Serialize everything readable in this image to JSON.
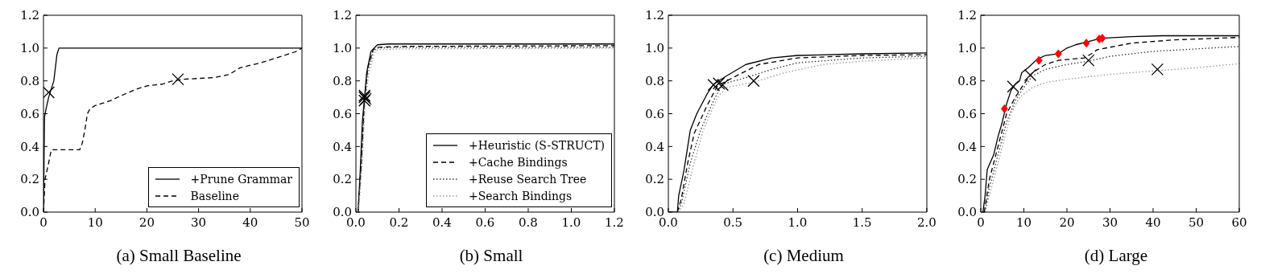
{
  "chart_data": [
    {
      "type": "line",
      "title": "(a) Small Baseline",
      "legend": "bottom right",
      "xlim": [
        0,
        50
      ],
      "xticks": [
        0,
        10,
        20,
        30,
        40,
        50
      ],
      "ylim": [
        0,
        1.2
      ],
      "yticks": [
        {
          "value": 0,
          "label": "0.0"
        },
        {
          "value": 0.2,
          "label": "0.2"
        },
        {
          "value": 0.4,
          "label": "0.4"
        },
        {
          "value": 0.6,
          "label": "0.6"
        },
        {
          "value": 0.8,
          "label": "0.8"
        },
        {
          "value": 1,
          "label": "1.0"
        },
        {
          "value": 1.2,
          "label": "1.2"
        }
      ],
      "series": [
        {
          "name": "+Prune Grammar",
          "color": "#000000",
          "line_style": "solid",
          "x": [
            0,
            0.2,
            0.5,
            1,
            1.5,
            2,
            2.3,
            2.6,
            3,
            5,
            50
          ],
          "values": [
            0,
            0.58,
            0.63,
            0.7,
            0.75,
            0.8,
            0.88,
            0.96,
            1.0,
            1.0,
            1.0
          ]
        },
        {
          "name": "Baseline",
          "color": "#000000",
          "line_style": "dashed",
          "x": [
            0,
            0.3,
            1,
            1.5,
            7,
            7.5,
            8,
            8.5,
            9,
            10,
            13,
            15,
            18,
            20,
            23,
            25,
            27,
            33,
            36,
            38,
            42,
            46,
            49,
            50
          ],
          "values": [
            0,
            0.2,
            0.3,
            0.38,
            0.38,
            0.42,
            0.5,
            0.6,
            0.63,
            0.65,
            0.68,
            0.71,
            0.75,
            0.77,
            0.78,
            0.8,
            0.81,
            0.82,
            0.84,
            0.88,
            0.91,
            0.95,
            0.98,
            1.0
          ]
        },
        {
          "type": "scatter",
          "marker": "cross",
          "color": "#000000",
          "x": [
            1,
            26
          ],
          "values": [
            0.73,
            0.81
          ]
        }
      ]
    },
    {
      "type": "line",
      "title": "(b) Small",
      "legend": "bottom right",
      "xlim": [
        0,
        1.2
      ],
      "xticks": [
        {
          "value": 0,
          "label": "0.0"
        },
        {
          "value": 0.2,
          "label": "0.2"
        },
        {
          "value": 0.4,
          "label": "0.4"
        },
        {
          "value": 0.6,
          "label": "0.6"
        },
        {
          "value": 0.8,
          "label": "0.8"
        },
        {
          "value": 1,
          "label": "1.0"
        },
        {
          "value": 1.2,
          "label": "1.2"
        }
      ],
      "ylim": [
        0,
        1.2
      ],
      "yticks": [
        {
          "value": 0,
          "label": "0.0"
        },
        {
          "value": 0.2,
          "label": "0.2"
        },
        {
          "value": 0.4,
          "label": "0.4"
        },
        {
          "value": 0.6,
          "label": "0.6"
        },
        {
          "value": 0.8,
          "label": "0.8"
        },
        {
          "value": 1,
          "label": "1.0"
        },
        {
          "value": 1.2,
          "label": "1.2"
        }
      ],
      "series": [
        {
          "name": "+Heuristic (S-STRUCT)",
          "color": "#000000",
          "line_style": "solid",
          "x": [
            0.01,
            0.02,
            0.03,
            0.04,
            0.05,
            0.07,
            0.1,
            0.15,
            1.2
          ],
          "values": [
            0,
            0.25,
            0.55,
            0.7,
            0.85,
            0.98,
            1.02,
            1.025,
            1.025
          ]
        },
        {
          "name": "+Cache Bindings",
          "color": "#000000",
          "line_style": "dashed",
          "x": [
            0.01,
            0.025,
            0.04,
            0.055,
            0.08,
            0.1,
            0.2,
            1.2
          ],
          "values": [
            0,
            0.3,
            0.68,
            0.88,
            0.99,
            1.005,
            1.01,
            1.015
          ]
        },
        {
          "name": "+Reuse Search Tree",
          "color": "#333333",
          "line_style": "dotted",
          "x": [
            0.01,
            0.025,
            0.04,
            0.055,
            0.08,
            0.1,
            0.2,
            1.2
          ],
          "values": [
            0,
            0.28,
            0.66,
            0.86,
            0.98,
            1.0,
            1.005,
            1.005
          ]
        },
        {
          "name": "+Search Bindings",
          "color": "#999999",
          "line_style": "dotted",
          "x": [
            0.012,
            0.028,
            0.042,
            0.06,
            0.085,
            0.1,
            0.2,
            1.2
          ],
          "values": [
            0,
            0.27,
            0.65,
            0.85,
            0.97,
            0.99,
            0.995,
            1.0
          ]
        },
        {
          "type": "scatter",
          "marker": "cross",
          "color": "#000000",
          "x": [
            0.04,
            0.04,
            0.045,
            0.04
          ],
          "values": [
            0.7,
            0.68,
            0.69,
            0.71
          ]
        }
      ]
    },
    {
      "type": "line",
      "title": "(c) Medium",
      "xlim": [
        0,
        2
      ],
      "xticks": [
        {
          "value": 0,
          "label": "0.0"
        },
        {
          "value": 0.5,
          "label": "0.5"
        },
        {
          "value": 1,
          "label": "1.0"
        },
        {
          "value": 1.5,
          "label": "1.5"
        },
        {
          "value": 2,
          "label": "2.0"
        }
      ],
      "ylim": [
        0,
        1.2
      ],
      "yticks": [
        {
          "value": 0,
          "label": "0.0"
        },
        {
          "value": 0.2,
          "label": "0.2"
        },
        {
          "value": 0.4,
          "label": "0.4"
        },
        {
          "value": 0.6,
          "label": "0.6"
        },
        {
          "value": 0.8,
          "label": "0.8"
        },
        {
          "value": 1,
          "label": "1.0"
        },
        {
          "value": 1.2,
          "label": "1.2"
        }
      ],
      "series": [
        {
          "color": "#000000",
          "line_style": "solid",
          "x": [
            0,
            0.07,
            0.08,
            0.12,
            0.15,
            0.17,
            0.22,
            0.3,
            0.35,
            0.45,
            0.6,
            0.8,
            1.0,
            1.5,
            2
          ],
          "values": [
            0,
            0,
            0.1,
            0.25,
            0.4,
            0.5,
            0.6,
            0.72,
            0.78,
            0.83,
            0.9,
            0.94,
            0.955,
            0.965,
            0.97
          ]
        },
        {
          "color": "#000000",
          "line_style": "dashed",
          "x": [
            0.07,
            0.1,
            0.15,
            0.2,
            0.3,
            0.38,
            0.5,
            0.7,
            1.0,
            1.5,
            2
          ],
          "values": [
            0,
            0.08,
            0.3,
            0.48,
            0.65,
            0.77,
            0.82,
            0.9,
            0.94,
            0.955,
            0.96
          ]
        },
        {
          "color": "#333333",
          "line_style": "dotted",
          "x": [
            0.07,
            0.1,
            0.17,
            0.25,
            0.35,
            0.42,
            0.6,
            0.8,
            1.0,
            1.5,
            2
          ],
          "values": [
            0,
            0.05,
            0.3,
            0.5,
            0.68,
            0.78,
            0.82,
            0.87,
            0.91,
            0.94,
            0.95
          ]
        },
        {
          "color": "#999999",
          "line_style": "dotted",
          "x": [
            0.08,
            0.12,
            0.2,
            0.27,
            0.38,
            0.45,
            0.65,
            0.9,
            1.2,
            1.5,
            2
          ],
          "values": [
            0,
            0.05,
            0.3,
            0.5,
            0.7,
            0.76,
            0.79,
            0.85,
            0.9,
            0.92,
            0.94
          ]
        },
        {
          "type": "scatter",
          "marker": "cross",
          "color": "#000000",
          "x": [
            0.35,
            0.39,
            0.42,
            0.66
          ],
          "values": [
            0.775,
            0.785,
            0.775,
            0.8
          ]
        }
      ]
    },
    {
      "type": "line",
      "title": "(d) Large",
      "xlim": [
        0,
        60
      ],
      "xticks": [
        0,
        10,
        20,
        30,
        40,
        50,
        60
      ],
      "ylim": [
        0,
        1.2
      ],
      "yticks": [
        {
          "value": 0,
          "label": "0.0"
        },
        {
          "value": 0.2,
          "label": "0.2"
        },
        {
          "value": 0.4,
          "label": "0.4"
        },
        {
          "value": 0.6,
          "label": "0.6"
        },
        {
          "value": 0.8,
          "label": "0.8"
        },
        {
          "value": 1,
          "label": "1.0"
        },
        {
          "value": 1.2,
          "label": "1.2"
        }
      ],
      "series": [
        {
          "color": "#000000",
          "line_style": "solid",
          "x": [
            0.5,
            1,
            1.5,
            3,
            4,
            5,
            6,
            7,
            8,
            9,
            9.5,
            11,
            13,
            15,
            18,
            20,
            22,
            25,
            28,
            35,
            42,
            60
          ],
          "values": [
            0,
            0.1,
            0.26,
            0.35,
            0.46,
            0.55,
            0.66,
            0.74,
            0.78,
            0.8,
            0.85,
            0.88,
            0.93,
            0.955,
            0.965,
            1.0,
            1.02,
            1.04,
            1.06,
            1.07,
            1.075,
            1.075
          ]
        },
        {
          "color": "#000000",
          "line_style": "dashed",
          "x": [
            0.8,
            2,
            4,
            6,
            8,
            10,
            12,
            15,
            18,
            24,
            26,
            27,
            35,
            45,
            60
          ],
          "values": [
            0,
            0.2,
            0.4,
            0.6,
            0.7,
            0.78,
            0.85,
            0.9,
            0.925,
            0.94,
            0.97,
            0.99,
            1.03,
            1.05,
            1.065
          ]
        },
        {
          "color": "#333333",
          "line_style": "dotted",
          "x": [
            1,
            2,
            4,
            6,
            8,
            10,
            12,
            15,
            20,
            25,
            30,
            40,
            60
          ],
          "values": [
            0,
            0.15,
            0.35,
            0.55,
            0.68,
            0.76,
            0.83,
            0.87,
            0.9,
            0.92,
            0.95,
            0.98,
            1.01
          ]
        },
        {
          "color": "#999999",
          "line_style": "dotted",
          "x": [
            1,
            2.5,
            5,
            7,
            9,
            12,
            15,
            20,
            30,
            40,
            50,
            60
          ],
          "values": [
            0,
            0.15,
            0.4,
            0.6,
            0.7,
            0.76,
            0.79,
            0.81,
            0.84,
            0.86,
            0.88,
            0.905
          ]
        },
        {
          "type": "scatter",
          "marker": "cross",
          "color": "#000000",
          "x": [
            7.5,
            11.5,
            25,
            41
          ],
          "values": [
            0.765,
            0.835,
            0.925,
            0.87
          ]
        },
        {
          "type": "scatter",
          "marker": "diamond",
          "color": "#ff0000",
          "x": [
            5.5,
            13.5,
            18,
            24.5,
            27.5,
            28.2
          ],
          "values": [
            0.63,
            0.925,
            0.965,
            1.03,
            1.055,
            1.06
          ]
        }
      ]
    }
  ]
}
